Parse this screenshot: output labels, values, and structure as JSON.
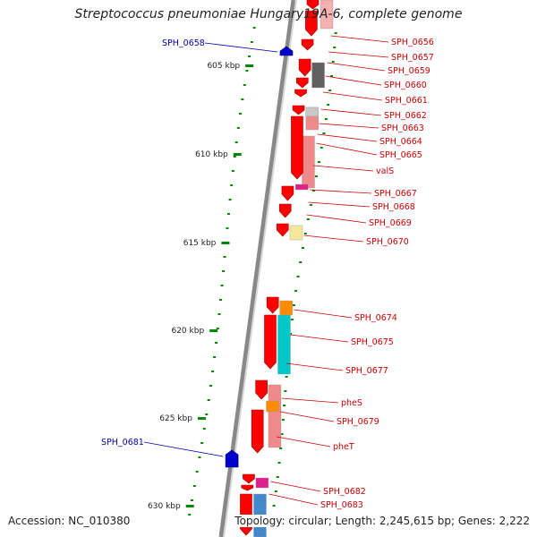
{
  "title": "Streptococcus pneumoniae Hungary19A-6, complete genome",
  "accession": "Accession: NC_010380",
  "topology": "Topology: circular; Length: 2,245,615 bp; Genes: 2,222",
  "colors": {
    "forward_gene": "#ff0000",
    "reverse_gene": "#0000cc",
    "label_forward": "#cc0000",
    "label_reverse": "#0000aa",
    "tick": "#008800"
  },
  "scale_labels": [
    "605 kbp",
    "610 kbp",
    "615 kbp",
    "620 kbp",
    "625 kbp",
    "630 kbp"
  ],
  "gene_labels_reverse": [
    "SPH_0658",
    "SPH_0681"
  ],
  "gene_labels_forward": [
    "SPH_0656",
    "SPH_0657",
    "SPH_0659",
    "SPH_0660",
    "SPH_0661",
    "SPH_0662",
    "SPH_0663",
    "SPH_0664",
    "SPH_0665",
    "valS",
    "SPH_0667",
    "SPH_0668",
    "SPH_0669",
    "SPH_0670",
    "SPH_0674",
    "SPH_0675",
    "SPH_0677",
    "pheS",
    "SPH_0679",
    "pheT",
    "SPH_0682",
    "SPH_0683"
  ]
}
